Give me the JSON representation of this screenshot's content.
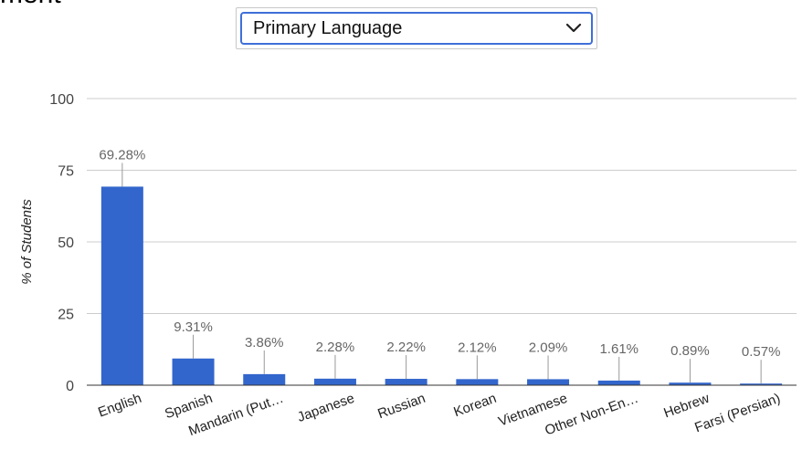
{
  "page": {
    "title_fragment": "ment"
  },
  "dropdown": {
    "selected": "Primary Language"
  },
  "chart_data": {
    "type": "bar",
    "categories": [
      "English",
      "Spanish",
      "Mandarin (Put…",
      "Japanese",
      "Russian",
      "Korean",
      "Vietnamese",
      "Other Non-En…",
      "Hebrew",
      "Farsi (Persian)"
    ],
    "values": [
      69.28,
      9.31,
      3.86,
      2.28,
      2.22,
      2.12,
      2.09,
      1.61,
      0.89,
      0.57
    ],
    "data_labels": [
      "69.28%",
      "9.31%",
      "3.86%",
      "2.28%",
      "2.22%",
      "2.12%",
      "2.09%",
      "1.61%",
      "0.89%",
      "0.57%"
    ],
    "title": "",
    "xlabel": "",
    "ylabel": "% of Students",
    "ylim": [
      0,
      100
    ],
    "yticks": [
      0,
      25,
      50,
      75,
      100
    ],
    "grid": true,
    "legend": "none",
    "colors": {
      "bar": "#3366cc",
      "grid": "#cccccc",
      "baseline": "#333333",
      "label": "#666666",
      "tick": "#444444"
    }
  }
}
